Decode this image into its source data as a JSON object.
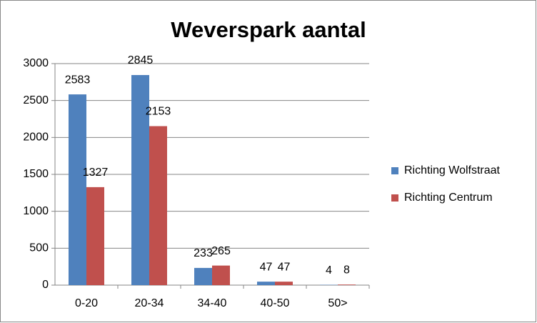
{
  "chart_data": {
    "type": "bar",
    "title": "Weverspark aantal",
    "categories": [
      "0-20",
      "20-34",
      "34-40",
      "40-50",
      "50>"
    ],
    "series": [
      {
        "name": "Richting Wolfstraat",
        "color": "#4f81bd",
        "values": [
          2583,
          2845,
          233,
          47,
          4
        ]
      },
      {
        "name": "Richting Centrum",
        "color": "#c0504d",
        "values": [
          1327,
          2153,
          265,
          47,
          8
        ]
      }
    ],
    "ylim": [
      0,
      3000
    ],
    "yticks": [
      0,
      500,
      1000,
      1500,
      2000,
      2500,
      3000
    ],
    "grid": true,
    "legend": "right"
  }
}
